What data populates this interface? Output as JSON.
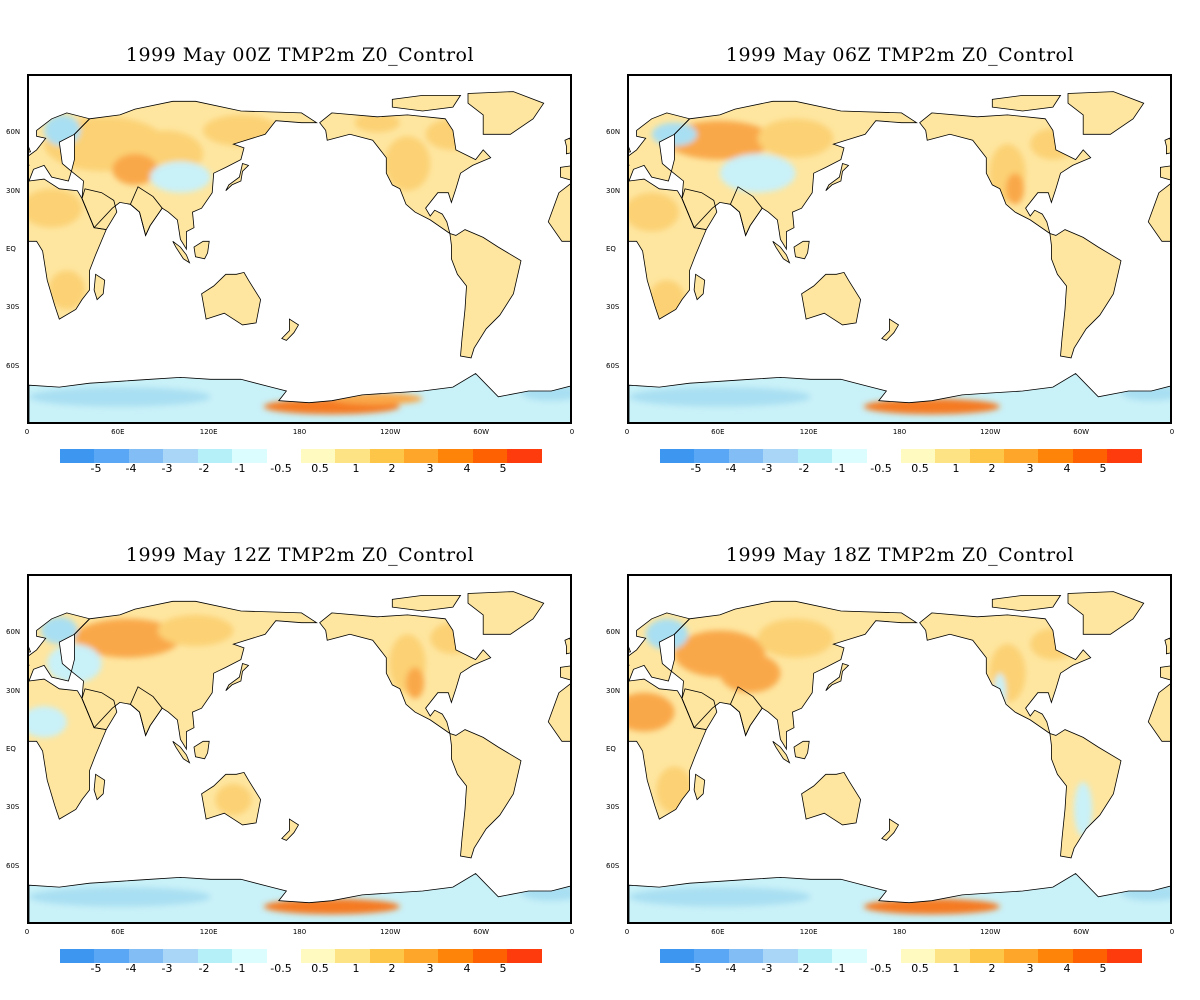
{
  "panels": [
    {
      "title": "1999 May  00Z TMP2m Z0_Control",
      "variant": 0
    },
    {
      "title": "1999  May 06Z TMP2m Z0_Control",
      "variant": 1
    },
    {
      "title": "1999  May 12Z TMP2m Z0_Control",
      "variant": 2
    },
    {
      "title": "1999  May 18Z TMP2m Z0_Control",
      "variant": 3
    }
  ],
  "lat_labels": [
    "60N",
    "30N",
    "EQ",
    "30S",
    "60S"
  ],
  "lon_labels": [
    "0",
    "60E",
    "120E",
    "180",
    "120W",
    "60W",
    "0"
  ],
  "colorbar": {
    "colors": [
      "#3d96f0",
      "#5aa8f5",
      "#82bef5",
      "#a9d6f7",
      "#b5eff7",
      "#dcfdfd",
      "#ffffff",
      "#fffabf",
      "#fee385",
      "#fec649",
      "#fda62a",
      "#fd8409",
      "#fd6102",
      "#fd3b0c"
    ],
    "labels": [
      "-5",
      "-4",
      "-3",
      "-2",
      "-1",
      "-0.5",
      "0.5",
      "1",
      "2",
      "3",
      "4",
      "5"
    ]
  },
  "fill_colors": {
    "ocean": "#ffffff",
    "warm_light": "#fee6a0",
    "warm_mid": "#fcd174",
    "warm_strong": "#f9a84a",
    "warm_hot": "#f57a21",
    "cool_light": "#c9f1f8",
    "cool_mid": "#a9dff2",
    "coast": "#000000"
  }
}
